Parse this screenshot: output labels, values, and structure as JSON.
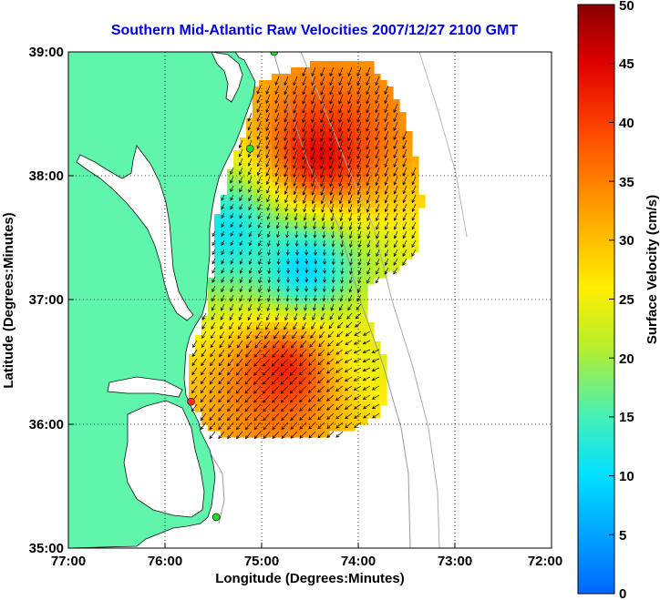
{
  "title": "Southern Mid-Atlantic Raw Velocities 2007/12/27 2100 GMT",
  "axes": {
    "xlabel": "Longitude (Degrees:Minutes)",
    "ylabel": "Latitude (Degrees:Minutes)",
    "x_ticks": [
      "77:00",
      "76:00",
      "75:00",
      "74:00",
      "73:00",
      "72:00"
    ],
    "y_ticks": [
      "39:00",
      "38:00",
      "37:00",
      "36:00",
      "35:00"
    ]
  },
  "colorbar": {
    "label": "Surface Velocity (cm/s)",
    "ticks": [
      "50",
      "45",
      "40",
      "35",
      "30",
      "25",
      "20",
      "15",
      "10",
      "5",
      "0"
    ],
    "range": [
      0,
      50
    ]
  },
  "colors": {
    "land": "#5ff5aa",
    "ocean": "#ffffff",
    "title": "#0000e0",
    "station": "#22dd22",
    "station_alt": "#ff2a2a",
    "grid": "#000000",
    "bathymetry": "#999999"
  },
  "chart_data": {
    "type": "heatmap",
    "title": "Southern Mid-Atlantic Raw Velocities 2007/12/27 2100 GMT",
    "xlabel": "Longitude (Degrees:Minutes)",
    "ylabel": "Latitude (Degrees:Minutes)",
    "xlim": [
      -77,
      -72
    ],
    "ylim": [
      35,
      39
    ],
    "colorbar_label": "Surface Velocity (cm/s)",
    "clim": [
      0,
      50
    ],
    "stations": [
      {
        "lon": -74.87,
        "lat": 39.0,
        "color": "green"
      },
      {
        "lon": -75.12,
        "lat": 38.22,
        "color": "green"
      },
      {
        "lon": -75.73,
        "lat": 36.18,
        "color": "red"
      },
      {
        "lon": -75.47,
        "lat": 35.25,
        "color": "green"
      }
    ],
    "velocity_features": [
      {
        "name": "north_high",
        "lon": -74.4,
        "lat": 38.15,
        "speed": 46,
        "dir_deg": 200
      },
      {
        "name": "south_high",
        "lon": -74.75,
        "lat": 36.45,
        "speed": 44,
        "dir_deg": 225
      },
      {
        "name": "central_low",
        "lon": -74.55,
        "lat": 37.25,
        "speed": 7,
        "dir_deg": 170
      },
      {
        "name": "west_low",
        "lon": -75.35,
        "lat": 37.55,
        "speed": 10,
        "dir_deg": 210
      },
      {
        "name": "east_mid",
        "lon": -73.8,
        "lat": 36.55,
        "speed": 24,
        "dir_deg": 250
      }
    ]
  }
}
